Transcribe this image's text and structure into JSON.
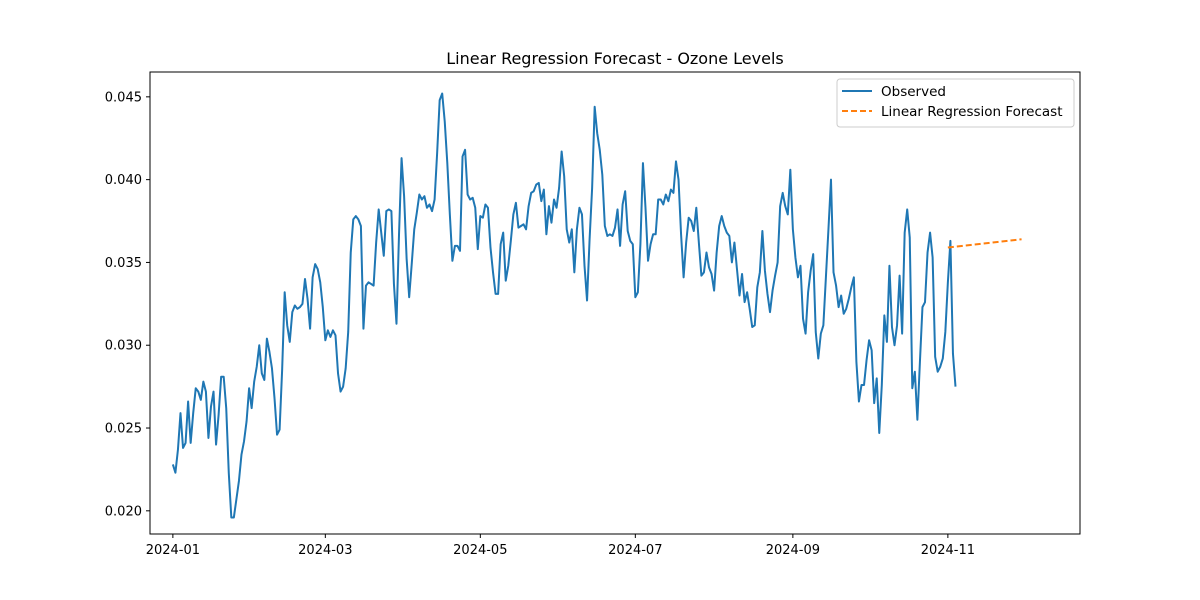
{
  "chart_data": {
    "type": "line",
    "title": "Linear Regression Forecast - Ozone Levels",
    "xlabel": "",
    "ylabel": "",
    "x_range": [
      "2023-12-23",
      "2024-12-23"
    ],
    "ylim": [
      0.0186,
      0.0465
    ],
    "x_ticks": [
      "2024-01",
      "2024-03",
      "2024-05",
      "2024-07",
      "2024-09",
      "2024-11"
    ],
    "y_ticks": [
      "0.020",
      "0.025",
      "0.030",
      "0.035",
      "0.040",
      "0.045"
    ],
    "grid": false,
    "legend": {
      "position": "top-right",
      "entries": [
        "Observed",
        "Linear Regression Forecast"
      ]
    },
    "series": [
      {
        "name": "Observed",
        "style": "solid",
        "color": "#1f77b4",
        "start_date": "2024-01-01",
        "step_days": 1,
        "values": [
          0.0228,
          0.0223,
          0.0237,
          0.0259,
          0.0238,
          0.0241,
          0.0266,
          0.0241,
          0.0259,
          0.0274,
          0.0272,
          0.0267,
          0.0278,
          0.0272,
          0.0244,
          0.0263,
          0.0272,
          0.024,
          0.0258,
          0.0281,
          0.0281,
          0.0262,
          0.0223,
          0.0196,
          0.0196,
          0.0207,
          0.0218,
          0.0234,
          0.0242,
          0.0254,
          0.0274,
          0.0262,
          0.0278,
          0.0287,
          0.03,
          0.0283,
          0.0279,
          0.0304,
          0.0296,
          0.0286,
          0.0268,
          0.0246,
          0.0249,
          0.0285,
          0.0332,
          0.0312,
          0.0302,
          0.032,
          0.0324,
          0.0322,
          0.0323,
          0.0325,
          0.034,
          0.0328,
          0.031,
          0.0341,
          0.0349,
          0.0346,
          0.0338,
          0.0323,
          0.0303,
          0.0309,
          0.0305,
          0.0309,
          0.0306,
          0.0283,
          0.0272,
          0.0275,
          0.0286,
          0.0308,
          0.0356,
          0.0376,
          0.0378,
          0.0376,
          0.0372,
          0.031,
          0.0336,
          0.0338,
          0.0337,
          0.0336,
          0.0362,
          0.0382,
          0.0368,
          0.0354,
          0.0381,
          0.0382,
          0.0381,
          0.0337,
          0.0313,
          0.0367,
          0.0413,
          0.039,
          0.0352,
          0.0329,
          0.0349,
          0.037,
          0.038,
          0.0391,
          0.0388,
          0.039,
          0.0383,
          0.0385,
          0.0381,
          0.0388,
          0.0416,
          0.0448,
          0.0452,
          0.0435,
          0.041,
          0.0379,
          0.0351,
          0.036,
          0.036,
          0.0357,
          0.0414,
          0.0418,
          0.0391,
          0.0388,
          0.0389,
          0.0383,
          0.0358,
          0.0378,
          0.0377,
          0.0385,
          0.0383,
          0.0359,
          0.0344,
          0.0331,
          0.0331,
          0.0361,
          0.0368,
          0.0339,
          0.0348,
          0.0363,
          0.0379,
          0.0386,
          0.0371,
          0.0372,
          0.0373,
          0.037,
          0.0384,
          0.0392,
          0.0393,
          0.0397,
          0.0398,
          0.0387,
          0.0394,
          0.0367,
          0.0384,
          0.0374,
          0.0388,
          0.0383,
          0.0395,
          0.0417,
          0.0402,
          0.037,
          0.0362,
          0.037,
          0.0344,
          0.037,
          0.0383,
          0.0379,
          0.0348,
          0.0327,
          0.0364,
          0.0395,
          0.0444,
          0.0428,
          0.0418,
          0.0403,
          0.0372,
          0.0366,
          0.0367,
          0.0366,
          0.0371,
          0.0382,
          0.036,
          0.0385,
          0.0393,
          0.0369,
          0.0363,
          0.0361,
          0.0329,
          0.0332,
          0.0361,
          0.041,
          0.0383,
          0.0351,
          0.0361,
          0.0367,
          0.0367,
          0.0388,
          0.0388,
          0.0385,
          0.0391,
          0.0387,
          0.0394,
          0.0392,
          0.0411,
          0.04,
          0.0367,
          0.0341,
          0.0362,
          0.0377,
          0.0375,
          0.0369,
          0.0383,
          0.0362,
          0.0342,
          0.0344,
          0.0356,
          0.0347,
          0.0343,
          0.0333,
          0.0356,
          0.0372,
          0.0378,
          0.0372,
          0.0368,
          0.0366,
          0.035,
          0.0362,
          0.0346,
          0.033,
          0.0343,
          0.0326,
          0.0332,
          0.0322,
          0.0311,
          0.0312,
          0.0335,
          0.0344,
          0.0369,
          0.0345,
          0.0331,
          0.032,
          0.0333,
          0.0342,
          0.035,
          0.0384,
          0.0392,
          0.0384,
          0.0379,
          0.0406,
          0.037,
          0.0353,
          0.0341,
          0.0348,
          0.0316,
          0.0307,
          0.0332,
          0.0345,
          0.0355,
          0.0308,
          0.0292,
          0.0307,
          0.0312,
          0.0341,
          0.037,
          0.04,
          0.0344,
          0.0336,
          0.0323,
          0.033,
          0.0319,
          0.0322,
          0.0328,
          0.0335,
          0.0341,
          0.029,
          0.0266,
          0.0276,
          0.0276,
          0.0291,
          0.0303,
          0.0297,
          0.0265,
          0.028,
          0.0247,
          0.0276,
          0.0318,
          0.0302,
          0.0348,
          0.0311,
          0.03,
          0.0312,
          0.0342,
          0.0307,
          0.0368,
          0.0382,
          0.0365,
          0.0274,
          0.0284,
          0.0255,
          0.029,
          0.0323,
          0.0326,
          0.0356,
          0.0368,
          0.0353,
          0.0293,
          0.0284,
          0.0287,
          0.0292,
          0.0308,
          0.0338,
          0.0363,
          0.0295,
          0.0275
        ]
      },
      {
        "name": "Linear Regression Forecast",
        "style": "dashed",
        "color": "#ff7f0e",
        "points": [
          {
            "x": "2024-11-01",
            "y": 0.0359
          },
          {
            "x": "2024-11-30",
            "y": 0.0364
          }
        ]
      }
    ]
  }
}
